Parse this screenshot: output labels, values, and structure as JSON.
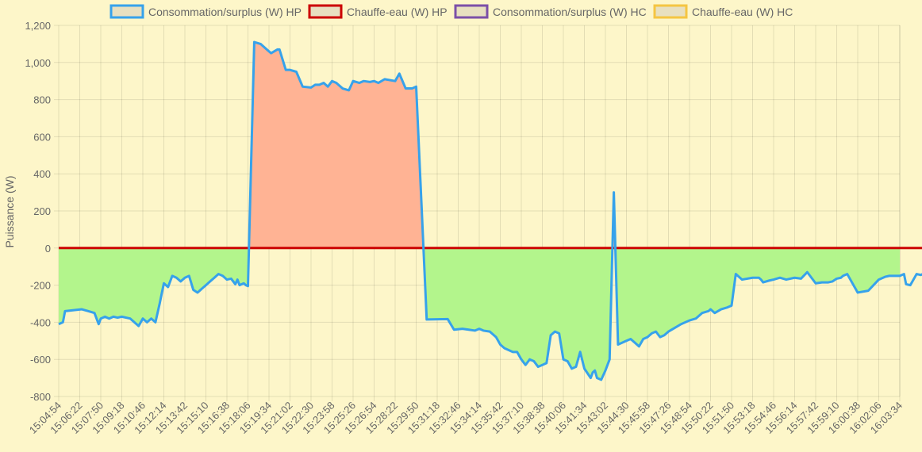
{
  "chart_data": {
    "type": "line",
    "ylabel": "Puissance (W)",
    "ylim": [
      -800,
      1200
    ],
    "y_ticks": [
      1200,
      1000,
      800,
      600,
      400,
      200,
      0,
      -200,
      -400,
      -600,
      -800
    ],
    "y_tick_labels": [
      "1,200",
      "1,000",
      "800",
      "600",
      "400",
      "200",
      "0",
      "-200",
      "-400",
      "-600",
      "-800"
    ],
    "x_tick_labels": [
      "15:04:54",
      "15:06:22",
      "15:07:50",
      "15:09:18",
      "15:10:46",
      "15:12:14",
      "15:13:42",
      "15:15:10",
      "15:16:38",
      "15:18:06",
      "15:19:34",
      "15:21:02",
      "15:22:30",
      "15:23:58",
      "15:25:26",
      "15:26:54",
      "15:28:22",
      "15:29:50",
      "15:31:18",
      "15:32:46",
      "15:34:14",
      "15:35:42",
      "15:37:10",
      "15:38:38",
      "15:40:06",
      "15:41:34",
      "15:43:02",
      "15:44:30",
      "15:45:58",
      "15:47:26",
      "15:48:54",
      "15:50:22",
      "15:51:50",
      "15:53:18",
      "15:54:46",
      "15:56:14",
      "15:57:42",
      "15:59:10",
      "16:00:38",
      "16:02:06",
      "16:03:34"
    ],
    "x_range_tick_index": [
      0,
      41.2
    ],
    "grid": true,
    "legend_position": "top",
    "legend": [
      {
        "label": "Consommation/surplus (W) HP",
        "border": "#36a2eb",
        "fill": "#e8e0c0"
      },
      {
        "label": "Chauffe-eau (W) HP",
        "border": "#cc0000",
        "fill": "#e8e0c0"
      },
      {
        "label": "Consommation/surplus (W) HC",
        "border": "#7b4fa8",
        "fill": "#e8e0c0"
      },
      {
        "label": "Chauffe-eau (W) HC",
        "border": "#f5c542",
        "fill": "#e8e0c0"
      }
    ],
    "series": [
      {
        "name": "Consommation/surplus (W) HP",
        "color": "#36a2eb",
        "fill_positive": "#ffb394",
        "fill_negative": "#b3f58c",
        "x_tick_index": [
          0,
          0.2,
          0.3,
          1.1,
          1.4,
          1.7,
          1.9,
          2.0,
          2.2,
          2.4,
          2.6,
          2.8,
          3.0,
          3.4,
          3.8,
          4.0,
          4.2,
          4.4,
          4.6,
          4.8,
          5.0,
          5.2,
          5.4,
          5.6,
          5.8,
          6.0,
          6.2,
          6.4,
          6.6,
          6.8,
          7.0,
          7.2,
          7.4,
          7.6,
          7.8,
          8.0,
          8.2,
          8.4,
          8.5,
          8.6,
          8.8,
          8.9,
          9.0,
          9.3,
          9.6,
          9.8,
          10.1,
          10.4,
          10.5,
          10.8,
          11.0,
          11.3,
          11.6,
          12.0,
          12.2,
          12.4,
          12.6,
          12.8,
          13.0,
          13.2,
          13.5,
          13.8,
          14.0,
          14.3,
          14.5,
          14.8,
          15.0,
          15.2,
          15.5,
          16.0,
          16.2,
          16.5,
          16.8,
          17.0,
          17.5,
          18.5,
          18.8,
          19.2,
          19.5,
          19.8,
          20.0,
          20.2,
          20.5,
          20.8,
          21.0,
          21.2,
          21.6,
          21.8,
          22.0,
          22.2,
          22.4,
          22.6,
          22.8,
          23.0,
          23.2,
          23.4,
          23.6,
          23.8,
          24.0,
          24.2,
          24.4,
          24.6,
          24.8,
          25.0,
          25.3,
          25.4,
          25.5,
          25.6,
          25.8,
          26.0,
          26.2,
          26.4,
          26.6,
          26.8,
          27.0,
          27.2,
          27.4,
          27.6,
          27.8,
          28.0,
          28.2,
          28.4,
          28.6,
          28.8,
          29.0,
          29.3,
          29.6,
          30.0,
          30.3,
          30.6,
          30.9,
          31.0,
          31.2,
          31.5,
          31.8,
          32.0,
          32.2,
          32.5,
          33.0,
          33.3,
          33.4,
          33.5,
          33.8,
          34.0,
          34.3,
          34.6,
          35.0,
          35.3,
          35.6,
          36.0,
          36.3,
          36.6,
          36.8,
          37.0,
          37.2,
          37.3,
          37.5,
          38.0,
          38.5,
          39.0,
          39.3,
          39.5,
          39.8,
          40.0,
          40.2,
          40.3,
          40.5,
          40.8,
          41.0,
          41.2
        ],
        "values": [
          -410,
          -400,
          -340,
          -330,
          -340,
          -350,
          -410,
          -380,
          -370,
          -380,
          -370,
          -375,
          -370,
          -380,
          -420,
          -380,
          -400,
          -380,
          -400,
          -300,
          -190,
          -210,
          -150,
          -160,
          -180,
          -160,
          -150,
          -225,
          -240,
          -220,
          -200,
          -180,
          -160,
          -140,
          -150,
          -170,
          -165,
          -195,
          -170,
          -200,
          -190,
          -200,
          -205,
          1110,
          1100,
          1080,
          1050,
          1070,
          1070,
          960,
          960,
          950,
          870,
          865,
          880,
          880,
          890,
          870,
          900,
          890,
          860,
          850,
          900,
          890,
          900,
          895,
          900,
          890,
          910,
          900,
          940,
          860,
          860,
          870,
          -385,
          -383,
          -440,
          -435,
          -440,
          -445,
          -435,
          -445,
          -450,
          -480,
          -520,
          -540,
          -560,
          -560,
          -600,
          -630,
          -600,
          -610,
          -640,
          -630,
          -620,
          -470,
          -450,
          -460,
          -600,
          -610,
          -650,
          -640,
          -560,
          -650,
          -700,
          -670,
          -660,
          -700,
          -710,
          -660,
          -600,
          300,
          -520,
          -510,
          -500,
          -490,
          -510,
          -530,
          -490,
          -480,
          -460,
          -450,
          -480,
          -470,
          -450,
          -430,
          -410,
          -390,
          -380,
          -350,
          -340,
          -330,
          -350,
          -330,
          -320,
          -310,
          -140,
          -170,
          -160,
          -160,
          -170,
          -185,
          -175,
          -170,
          -160,
          -170,
          -160,
          -165,
          -130,
          -190,
          -185,
          -185,
          -180,
          -165,
          -160,
          -150,
          -140,
          -240,
          -230,
          -170,
          -155,
          -150,
          -150,
          -150,
          -140,
          -195,
          -200,
          -140,
          -145,
          -135,
          -130,
          -125
        ],
        "stroke_width": 3
      },
      {
        "name": "Chauffe-eau (W) HP",
        "color": "#cc0000",
        "x_tick_index": [
          0,
          41.2
        ],
        "values": [
          0,
          0
        ],
        "stroke_width": 3
      }
    ]
  }
}
